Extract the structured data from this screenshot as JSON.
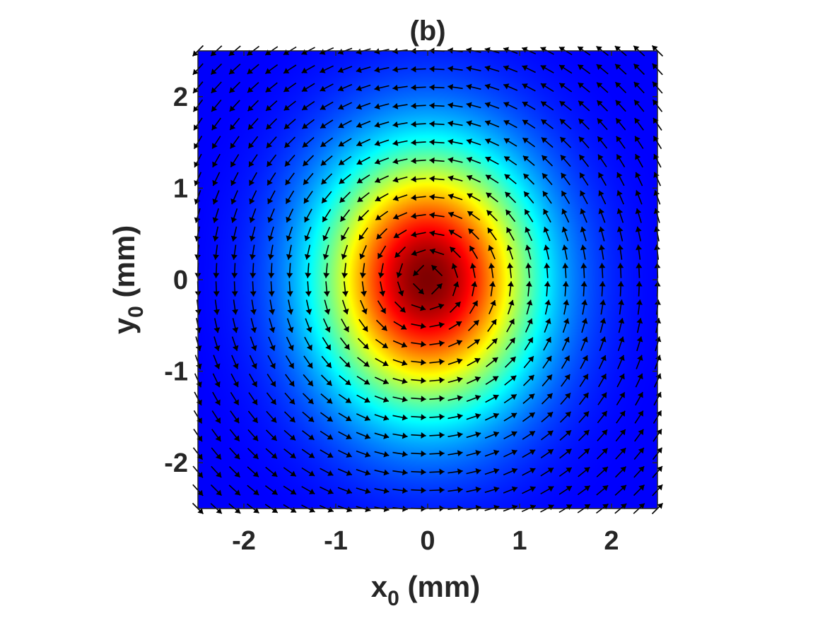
{
  "chart_data": {
    "type": "heatmap",
    "title": "(b)",
    "xlabel": {
      "main": "x",
      "sub": "0",
      "unit": " (mm)"
    },
    "ylabel": {
      "main": "y",
      "sub": "0",
      "unit": " (mm)"
    },
    "xlim": [
      -2.5,
      2.5
    ],
    "ylim": [
      -2.5,
      2.5
    ],
    "x_ticks": [
      -2,
      -1,
      0,
      1,
      2
    ],
    "y_ticks": [
      -2,
      -1,
      0,
      1,
      2
    ],
    "x_tick_labels": [
      "-2",
      "-1",
      "0",
      "1",
      "2"
    ],
    "y_tick_labels": [
      "-2",
      "-1",
      "0",
      "1",
      "2"
    ],
    "colormap": "jet",
    "intensity_field": {
      "form": "gaussian",
      "center": [
        0,
        0
      ],
      "width_x": 1.15,
      "width_y": 1.4
    },
    "vector_field": {
      "type": "quiver",
      "grid_x": [
        -2.5,
        2.5,
        26
      ],
      "grid_y": [
        -2.5,
        2.5,
        26
      ],
      "rotation": "counterclockwise",
      "color": "#000000"
    },
    "grid": false,
    "colors": {
      "axis": "#262626",
      "arrow": "#000000"
    }
  }
}
